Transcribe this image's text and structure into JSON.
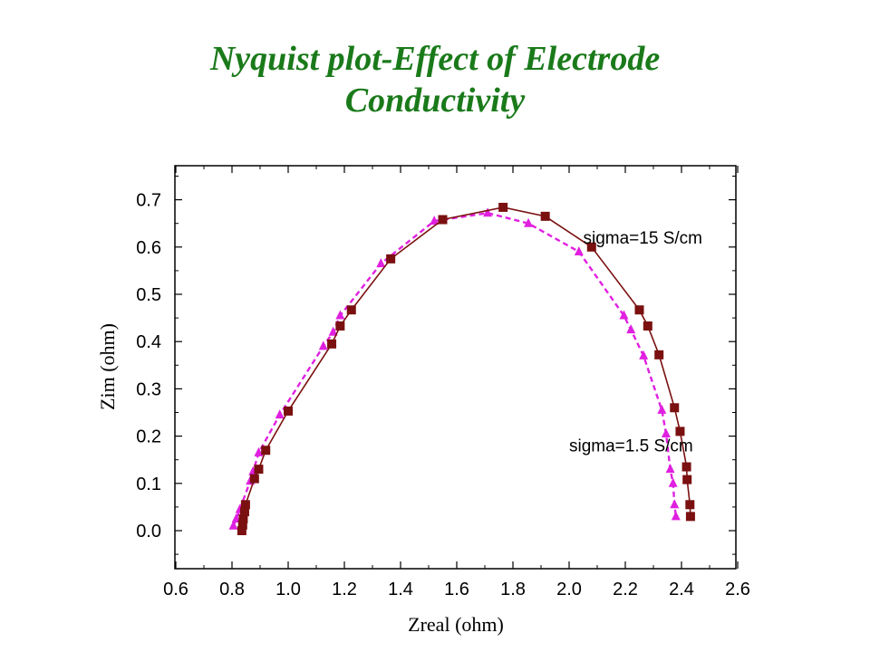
{
  "title": {
    "line1": "Nyquist plot-Effect of Electrode",
    "line2": "Conductivity"
  },
  "chart_data": {
    "type": "line",
    "xlabel": "Zreal (ohm)",
    "ylabel": "Zim (ohm)",
    "xlim": [
      0.6,
      2.6
    ],
    "ylim": [
      -0.05,
      0.77
    ],
    "xticks": [
      0.6,
      0.8,
      1.0,
      1.2,
      1.4,
      1.6,
      1.8,
      2.0,
      2.2,
      2.4,
      2.6
    ],
    "xtick_labels": [
      "0.6",
      "0.8",
      "1.0",
      "1.2",
      "1.4",
      "1.6",
      "1.8",
      "2.0",
      "2.2",
      "2.4",
      "2.6"
    ],
    "yticks": [
      0.0,
      0.1,
      0.2,
      0.3,
      0.4,
      0.5,
      0.6,
      0.7
    ],
    "ytick_labels": [
      "0.0",
      "0.1",
      "0.2",
      "0.3",
      "0.4",
      "0.5",
      "0.6",
      "0.7"
    ],
    "grid": false,
    "series": [
      {
        "name": "sigma=15 S/cm",
        "color": "#7a1010",
        "marker": "square",
        "line_style": "solid",
        "points": [
          [
            0.835,
            0.0
          ],
          [
            0.838,
            0.012
          ],
          [
            0.84,
            0.025
          ],
          [
            0.845,
            0.04
          ],
          [
            0.848,
            0.055
          ],
          [
            0.88,
            0.11
          ],
          [
            0.895,
            0.13
          ],
          [
            0.92,
            0.17
          ],
          [
            1.0,
            0.253
          ],
          [
            1.155,
            0.395
          ],
          [
            1.185,
            0.433
          ],
          [
            1.225,
            0.467
          ],
          [
            1.365,
            0.575
          ],
          [
            1.55,
            0.658
          ],
          [
            1.765,
            0.684
          ],
          [
            1.915,
            0.665
          ],
          [
            2.08,
            0.6
          ],
          [
            2.25,
            0.467
          ],
          [
            2.28,
            0.433
          ],
          [
            2.32,
            0.372
          ],
          [
            2.375,
            0.26
          ],
          [
            2.395,
            0.21
          ],
          [
            2.418,
            0.135
          ],
          [
            2.42,
            0.108
          ],
          [
            2.43,
            0.055
          ],
          [
            2.432,
            0.03
          ]
        ]
      },
      {
        "name": "sigma=1.5 S/cm",
        "color": "#e020e0",
        "marker": "triangle",
        "line_style": "dashed",
        "points": [
          [
            0.805,
            0.01
          ],
          [
            0.815,
            0.025
          ],
          [
            0.828,
            0.045
          ],
          [
            0.865,
            0.105
          ],
          [
            0.875,
            0.125
          ],
          [
            0.895,
            0.165
          ],
          [
            0.97,
            0.245
          ],
          [
            1.125,
            0.39
          ],
          [
            1.16,
            0.42
          ],
          [
            1.185,
            0.455
          ],
          [
            1.33,
            0.565
          ],
          [
            1.52,
            0.655
          ],
          [
            1.71,
            0.672
          ],
          [
            1.855,
            0.65
          ],
          [
            2.035,
            0.59
          ],
          [
            2.195,
            0.455
          ],
          [
            2.22,
            0.425
          ],
          [
            2.265,
            0.37
          ],
          [
            2.33,
            0.255
          ],
          [
            2.345,
            0.205
          ],
          [
            2.36,
            0.13
          ],
          [
            2.37,
            0.1
          ],
          [
            2.375,
            0.055
          ],
          [
            2.38,
            0.03
          ]
        ]
      }
    ],
    "annotations": [
      {
        "text": "sigma=15 S/cm",
        "x": 2.05,
        "y": 0.615
      },
      {
        "text": "sigma=1.5 S/cm",
        "x": 2.0,
        "y": 0.175
      }
    ]
  }
}
